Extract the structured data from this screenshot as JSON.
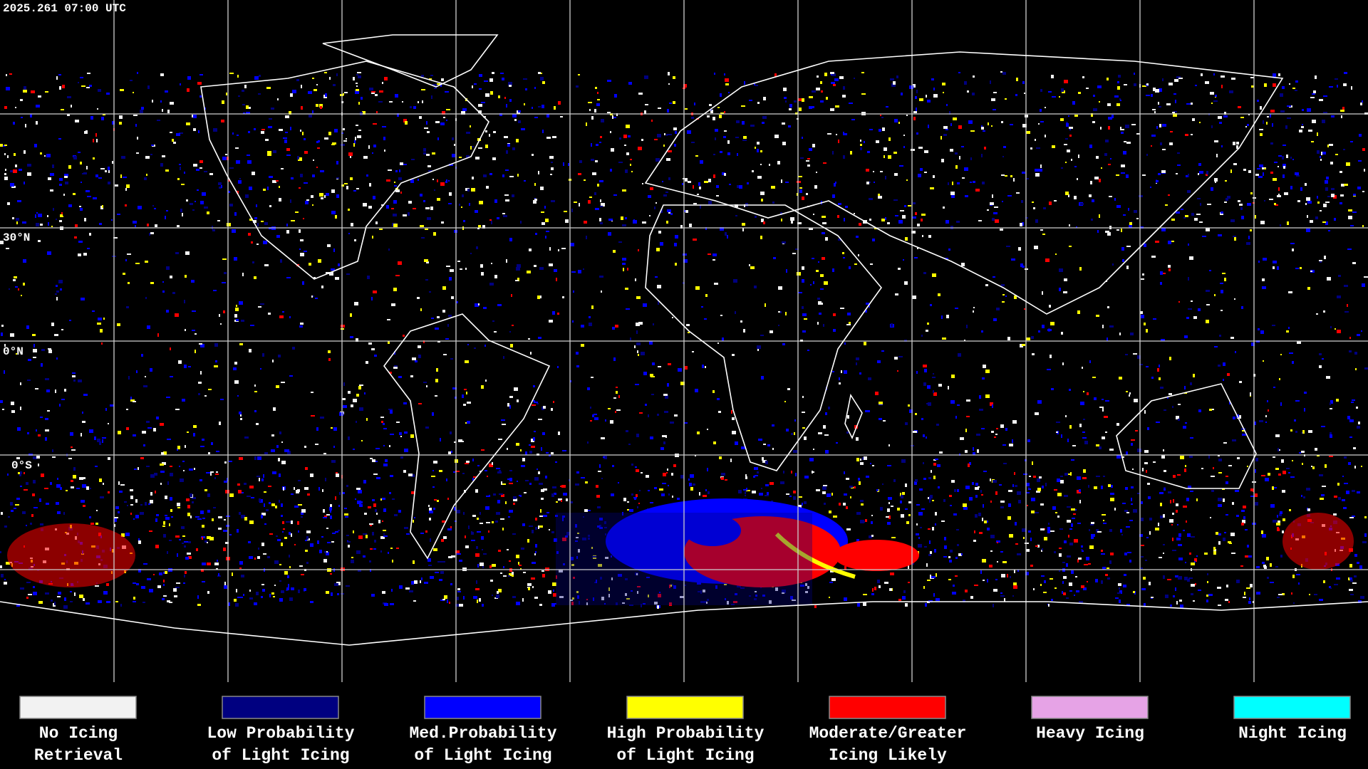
{
  "header": {
    "title": "2025.261 07:00 UTC"
  },
  "map": {
    "latitude_labels": [
      "30°N",
      "0°N",
      "0°S"
    ]
  },
  "legend": [
    {
      "color": "#f2f2f2",
      "lines": [
        "No Icing",
        "Retrieval"
      ]
    },
    {
      "color": "#000080",
      "lines": [
        "Low Probability",
        "of Light Icing"
      ]
    },
    {
      "color": "#0000ff",
      "lines": [
        "Med.Probability",
        "of Light Icing"
      ]
    },
    {
      "color": "#ffff00",
      "lines": [
        "High Probability",
        "of Light Icing"
      ]
    },
    {
      "color": "#ff0000",
      "lines": [
        "Moderate/Greater",
        "Icing Likely"
      ]
    },
    {
      "color": "#e6a3e6",
      "lines": [
        "Heavy Icing"
      ]
    },
    {
      "color": "#00ffff",
      "lines": [
        "Night Icing"
      ]
    }
  ]
}
